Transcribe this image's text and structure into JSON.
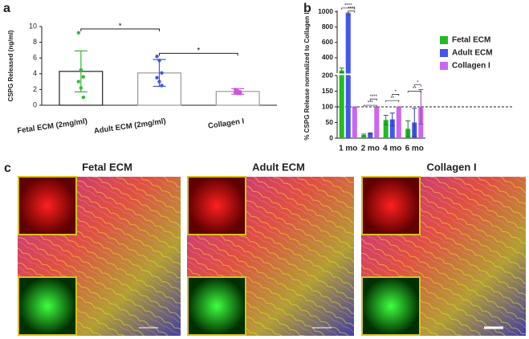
{
  "chart_data": [
    {
      "type": "bar",
      "panel_label": "a",
      "ylabel": "CSPG Released (ng/ml)",
      "categories": [
        "Fetal ECM (2mg/ml)",
        "Adult ECM (2mg/ml)",
        "Collagen I"
      ],
      "values": [
        4.3,
        4.1,
        1.75
      ],
      "errors": [
        2.6,
        1.7,
        0.35
      ],
      "points": [
        [
          9.2,
          4.5,
          3.6,
          3.0,
          2.2,
          1.0
        ],
        [
          6.2,
          5.7,
          4.1,
          3.5,
          3.0,
          2.5
        ],
        [
          2.0,
          1.8,
          1.7,
          1.6,
          1.5,
          1.5
        ]
      ],
      "edge_colors": [
        "#222222",
        "#999999",
        "#999999"
      ],
      "point_colors": [
        "#33bb33",
        "#4455dd",
        "#cc55dd"
      ],
      "ylim": [
        0,
        10
      ],
      "yticks": [
        0,
        2,
        4,
        6,
        8,
        10
      ],
      "annotations": [
        {
          "text": "*",
          "from": 0,
          "to": 1,
          "y": 9.7
        },
        {
          "text": "*",
          "from": 1,
          "to": 2,
          "y": 6.6
        }
      ]
    },
    {
      "type": "grouped-bar",
      "panel_label": "b",
      "ylabel": "% CSPG Release normalized to Collagen I",
      "categories": [
        "1 mo",
        "2 mo",
        "4 mo",
        "6 mo"
      ],
      "series": [
        {
          "name": "Fetal ECM",
          "color": "#22bb22",
          "values": [
            235,
            10,
            58,
            30
          ],
          "errors": [
            30,
            3,
            15,
            25
          ]
        },
        {
          "name": "Adult ECM",
          "color": "#4455ee",
          "values": [
            975,
            15,
            60,
            50
          ],
          "errors": [
            10,
            2,
            20,
            45
          ]
        },
        {
          "name": "Collagen I",
          "color": "#cc66ee",
          "values": [
            100,
            100,
            100,
            100
          ],
          "errors": [
            0,
            0,
            0,
            55
          ]
        }
      ],
      "ylim": [
        0,
        1060
      ],
      "ybreak": 200,
      "yticks": [
        0,
        50,
        100,
        150,
        200,
        400,
        600,
        800,
        1000
      ],
      "reference_line": 100,
      "legend": "right",
      "annotations": [
        {
          "text": "****",
          "category": 0,
          "from": 0,
          "to": 2,
          "y": 1050
        },
        {
          "text": "****",
          "category": 0,
          "from": 1,
          "to": 2,
          "y": 1010
        },
        {
          "text": "***",
          "category": 1,
          "from": 0,
          "to": 2,
          "y": 105
        },
        {
          "text": "****",
          "category": 1,
          "from": 1,
          "to": 2,
          "y": 125
        },
        {
          "text": "**",
          "category": 2,
          "from": 0,
          "to": 2,
          "y": 120
        },
        {
          "text": "*",
          "category": 2,
          "from": 1,
          "to": 2,
          "y": 140
        },
        {
          "text": "**",
          "category": 3,
          "from": 0,
          "to": 2,
          "y": 150
        },
        {
          "text": "*",
          "category": 3,
          "from": 1,
          "to": 2,
          "y": 170
        }
      ]
    }
  ],
  "panel_c": {
    "label": "c",
    "titles": [
      "Fetal ECM",
      "Adult ECM",
      "Collagen I"
    ]
  }
}
